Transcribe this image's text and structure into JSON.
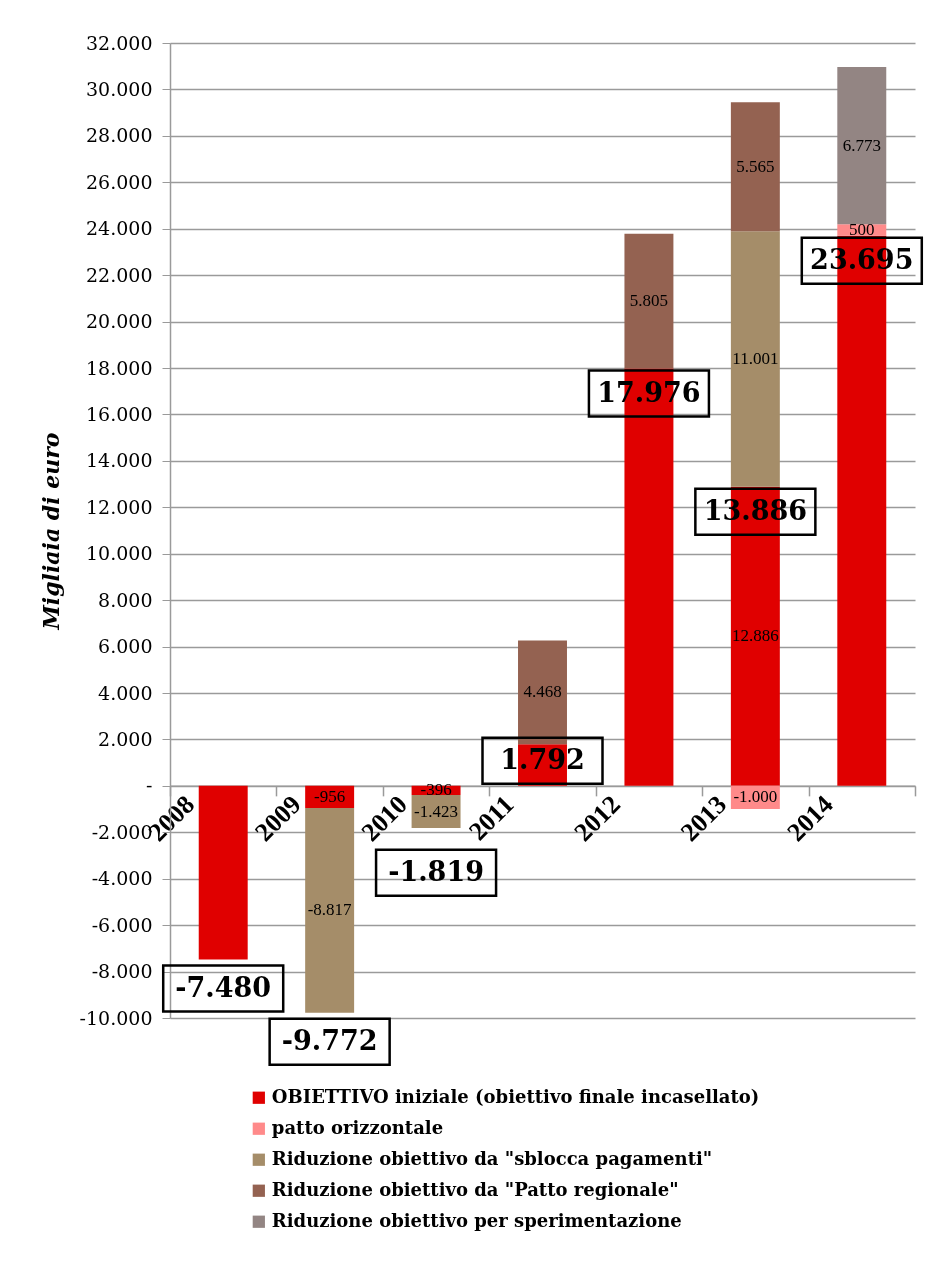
{
  "chart_data": {
    "type": "bar",
    "stacked": true,
    "ylabel": "Migliaia di euro",
    "categories": [
      "2008",
      "2009",
      "2010",
      "2011",
      "2012",
      "2013",
      "2014"
    ],
    "series": [
      {
        "name": "OBIETTIVO iniziale (obiettivo finale incasellato)",
        "color": "#e00000",
        "values": [
          -7480,
          -956,
          -396,
          1792,
          17976,
          12886,
          23695
        ],
        "value_labels": [
          null,
          "-956",
          "-396",
          null,
          null,
          "12.886",
          null
        ]
      },
      {
        "name": "patto orizzontale",
        "color": "#ff8a8a",
        "values": [
          null,
          null,
          null,
          null,
          null,
          -1000,
          500
        ],
        "value_labels": [
          null,
          null,
          null,
          null,
          null,
          "-1.000",
          "500"
        ]
      },
      {
        "name": "Riduzione obiettivo da \"sblocca pagamenti\"",
        "color": "#a58d69",
        "values": [
          null,
          -8817,
          -1423,
          null,
          null,
          11001,
          null
        ],
        "value_labels": [
          null,
          "-8.817",
          "-1.423",
          null,
          null,
          "11.001",
          null
        ]
      },
      {
        "name": "Riduzione obiettivo da \"Patto regionale\"",
        "color": "#946251",
        "values": [
          null,
          null,
          null,
          4468,
          5805,
          5565,
          null
        ],
        "value_labels": [
          null,
          null,
          null,
          "4.468",
          "5.805",
          "5.565",
          null
        ]
      },
      {
        "name": "Riduzione obiettivo per sperimentazione",
        "color": "#938583",
        "values": [
          null,
          null,
          null,
          null,
          null,
          null,
          6773
        ],
        "value_labels": [
          null,
          null,
          null,
          null,
          null,
          null,
          "6.773"
        ]
      }
    ],
    "ylim": [
      -10000,
      32000
    ],
    "yticks": [
      {
        "value": 32000,
        "label": "32.000"
      },
      {
        "value": 30000,
        "label": "30.000"
      },
      {
        "value": 28000,
        "label": "28.000"
      },
      {
        "value": 26000,
        "label": "26.000"
      },
      {
        "value": 24000,
        "label": "24.000"
      },
      {
        "value": 22000,
        "label": "22.000"
      },
      {
        "value": 20000,
        "label": "20.000"
      },
      {
        "value": 18000,
        "label": "18.000"
      },
      {
        "value": 16000,
        "label": "16.000"
      },
      {
        "value": 14000,
        "label": "14.000"
      },
      {
        "value": 12000,
        "label": "12.000"
      },
      {
        "value": 10000,
        "label": "10.000"
      },
      {
        "value": 8000,
        "label": "8.000"
      },
      {
        "value": 6000,
        "label": "6.000"
      },
      {
        "value": 4000,
        "label": "4.000"
      },
      {
        "value": 2000,
        "label": "2.000"
      },
      {
        "value": 0,
        "label": "-"
      },
      {
        "value": -2000,
        "label": "-2.000"
      },
      {
        "value": -4000,
        "label": "-4.000"
      },
      {
        "value": -6000,
        "label": "-6.000"
      },
      {
        "value": -8000,
        "label": "-8.000"
      },
      {
        "value": -10000,
        "label": "-10.000"
      }
    ],
    "grid": "y",
    "legend": "bottom",
    "annotations": [
      "-7.480",
      "-9.772",
      "-1.819",
      "1.792",
      "17.976",
      "13.886",
      "23.695"
    ]
  }
}
